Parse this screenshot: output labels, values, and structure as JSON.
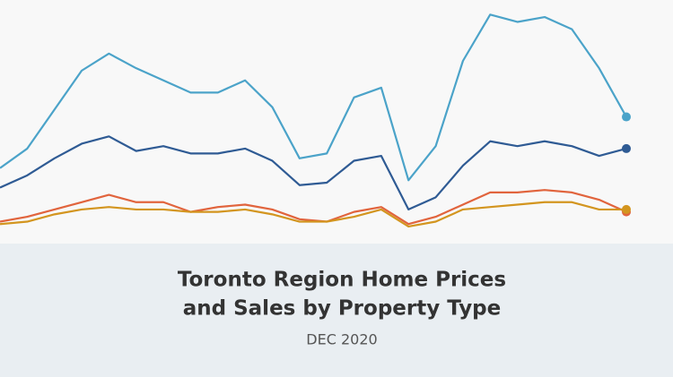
{
  "chart_data": {
    "type": "line",
    "title": [
      "Toronto Region Home Prices",
      "and Sales by Property Type"
    ],
    "subtitle": "DEC 2020",
    "categories": [
      null,
      null,
      null,
      null,
      null,
      null,
      null,
      null,
      null,
      null,
      null,
      null,
      null,
      null,
      null,
      null,
      null,
      null,
      null,
      null,
      null,
      null,
      null,
      null
    ],
    "ylim": [
      0,
      100
    ],
    "series": [
      {
        "color": "#4ba3c9",
        "values": [
          31,
          39,
          55,
          71,
          78,
          72,
          67,
          62,
          62,
          67,
          56,
          35,
          37,
          60,
          64,
          26,
          40,
          75,
          94,
          91,
          93,
          88,
          72,
          52
        ]
      },
      {
        "color": "#2f5b94",
        "values": [
          23,
          28,
          35,
          41,
          44,
          38,
          40,
          37,
          37,
          39,
          34,
          24,
          25,
          34,
          36,
          14,
          19,
          32,
          42,
          40,
          42,
          40,
          36,
          39
        ]
      },
      {
        "color": "#e1643d",
        "values": [
          9,
          11,
          14,
          17,
          20,
          17,
          17,
          13,
          15,
          16,
          14,
          10,
          9,
          13,
          15,
          8,
          11,
          16,
          21,
          21,
          22,
          21,
          18,
          13
        ]
      },
      {
        "color": "#d3951f",
        "values": [
          8,
          9,
          12,
          14,
          15,
          14,
          14,
          13,
          13,
          14,
          12,
          9,
          9,
          11,
          14,
          7,
          9,
          14,
          15,
          16,
          17,
          17,
          14,
          14
        ]
      }
    ]
  }
}
